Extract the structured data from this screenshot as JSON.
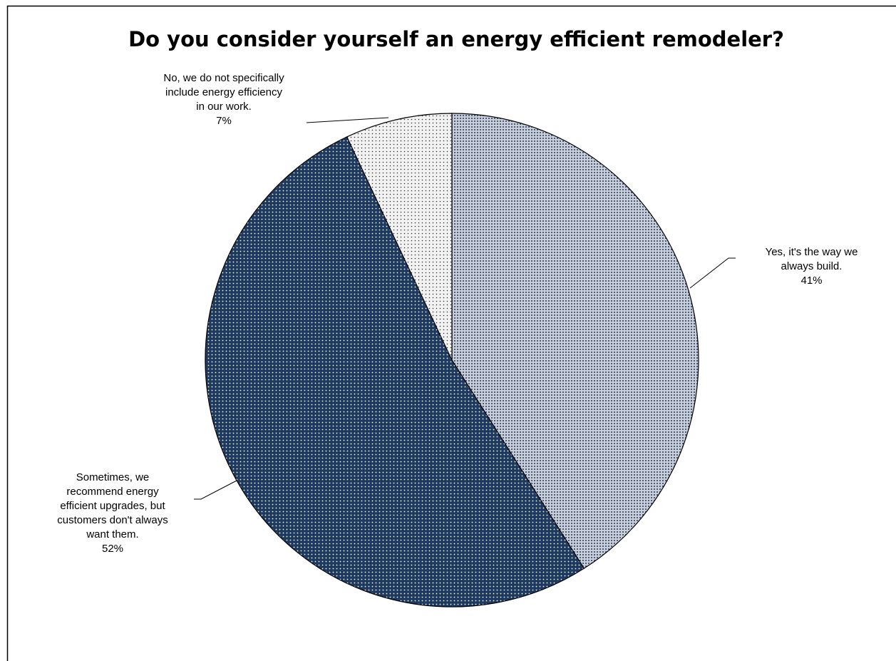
{
  "chart_data": {
    "type": "pie",
    "title": "Do you consider yourself an energy efficient remodeler?",
    "categories": [
      "Yes, it's the way we always build.",
      "Sometimes, we recommend energy efficient upgrades, but customers don't always want them.",
      "No, we do not specifically include energy efficiency in our work."
    ],
    "values": [
      41,
      52,
      7
    ],
    "value_labels": [
      "41%",
      "52%",
      "7%"
    ],
    "colors": [
      "#c9ced8",
      "#1f3a60",
      "#f2f2f2"
    ]
  }
}
